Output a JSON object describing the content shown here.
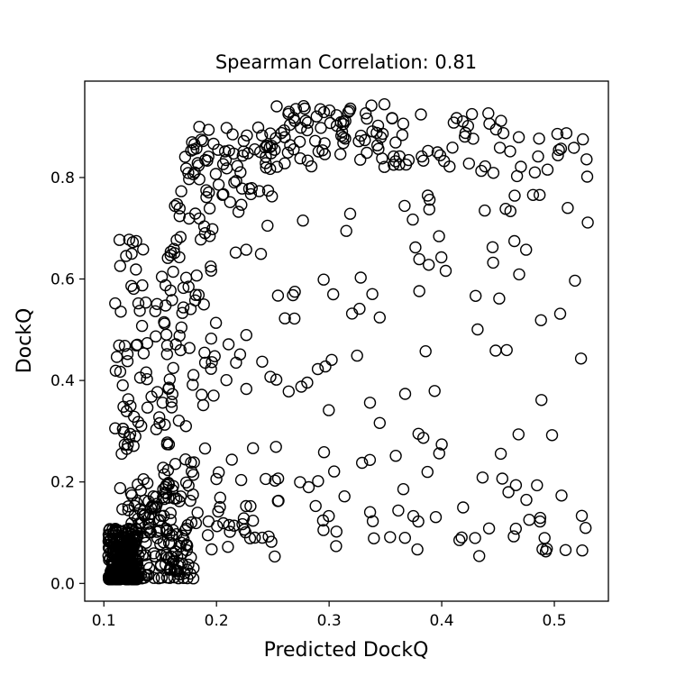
{
  "chart_data": {
    "type": "scatter",
    "title": "Spearman Correlation: 0.81",
    "xlabel": "Predicted DockQ",
    "ylabel": "DockQ",
    "xlim": [
      0.083,
      0.548
    ],
    "ylim": [
      -0.035,
      0.99
    ],
    "xticks": [
      0.1,
      0.2,
      0.3,
      0.4,
      0.5
    ],
    "xtick_labels": [
      "0.1",
      "0.2",
      "0.3",
      "0.4",
      "0.5"
    ],
    "yticks": [
      0.0,
      0.2,
      0.4,
      0.6,
      0.8
    ],
    "ytick_labels": [
      "0.0",
      "0.2",
      "0.4",
      "0.6",
      "0.8"
    ],
    "grid": false,
    "legend": "none",
    "marker": "open-circle",
    "marker_color": "#000000",
    "seed": 20241,
    "clusters": [
      {
        "n": 330,
        "x": [
          0.104,
          0.13
        ],
        "y": [
          0.008,
          0.11
        ],
        "y_dist": "skew"
      },
      {
        "n": 150,
        "x": [
          0.12,
          0.18
        ],
        "y": [
          0.01,
          0.2
        ],
        "y_dist": "skew"
      },
      {
        "n": 110,
        "x": [
          0.11,
          0.165
        ],
        "y": [
          0.1,
          0.68
        ],
        "y_dist": "uniform"
      },
      {
        "n": 55,
        "x": [
          0.16,
          0.2
        ],
        "y": [
          0.25,
          0.78
        ],
        "y_dist": "uniform"
      },
      {
        "n": 65,
        "x": [
          0.17,
          0.25
        ],
        "y": [
          0.76,
          0.9
        ],
        "y_dist": "uniform"
      },
      {
        "n": 80,
        "x": [
          0.24,
          0.36
        ],
        "y": [
          0.82,
          0.945
        ],
        "y_dist": "uniform"
      },
      {
        "n": 50,
        "x": [
          0.36,
          0.53
        ],
        "y": [
          0.8,
          0.93
        ],
        "y_dist": "uniform"
      },
      {
        "n": 120,
        "x": [
          0.2,
          0.53
        ],
        "y": [
          0.05,
          0.78
        ],
        "y_dist": "uniform"
      },
      {
        "n": 40,
        "x": [
          0.2,
          0.53
        ],
        "y": [
          0.05,
          0.22
        ],
        "y_dist": "uniform"
      },
      {
        "n": 30,
        "x": [
          0.15,
          0.25
        ],
        "y": [
          0.01,
          0.25
        ],
        "y_dist": "uniform"
      }
    ]
  }
}
